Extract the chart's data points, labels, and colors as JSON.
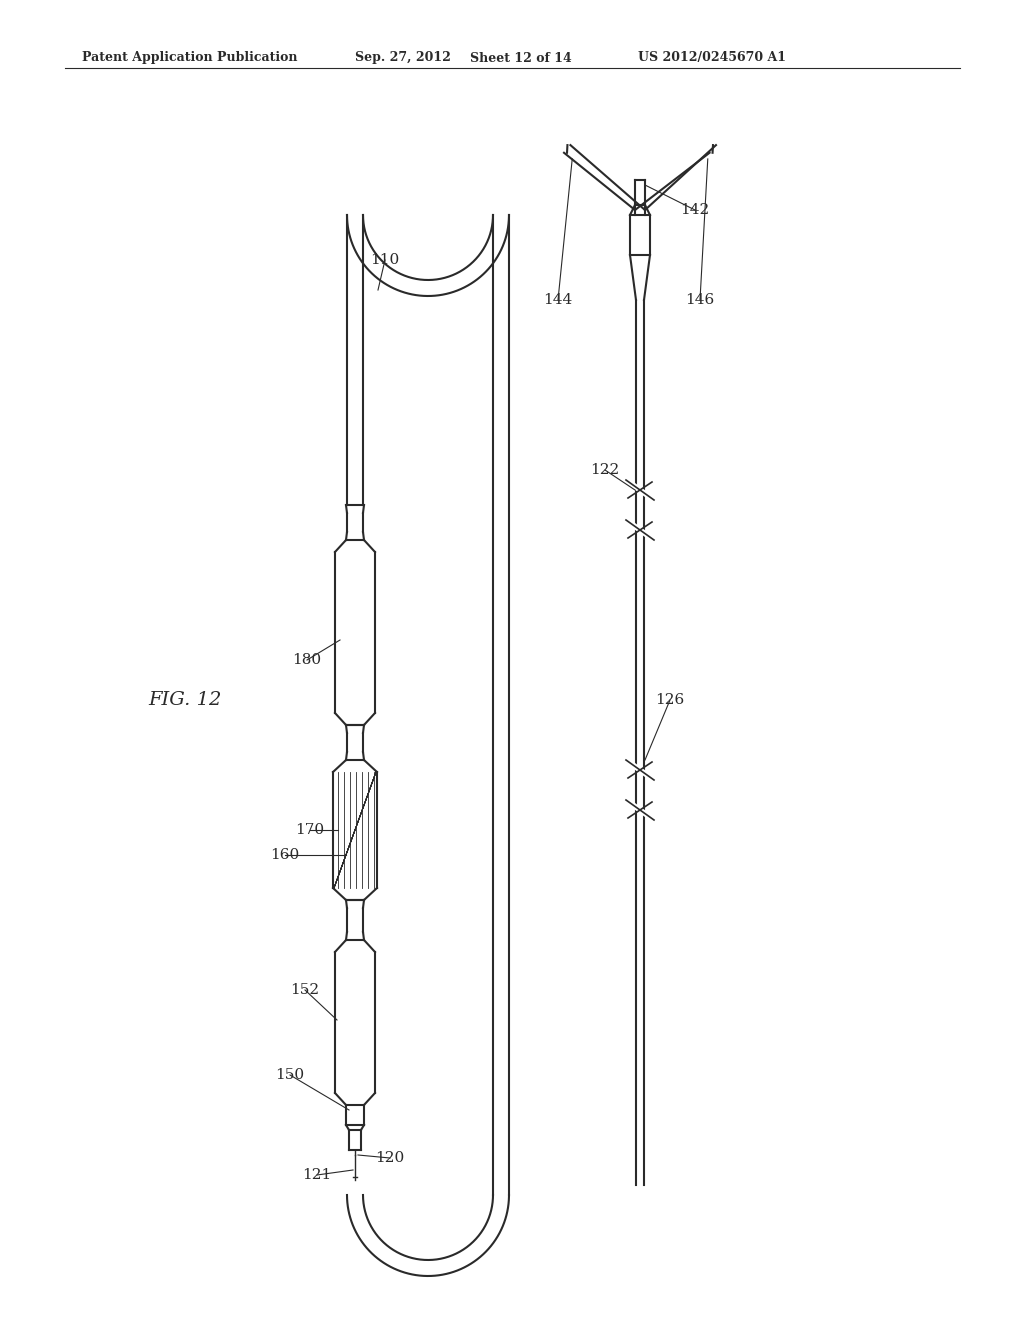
{
  "bg_color": "#ffffff",
  "line_color": "#2a2a2a",
  "header_text": "Patent Application Publication",
  "header_date": "Sep. 27, 2012",
  "header_sheet": "Sheet 12 of 14",
  "header_patent": "US 2012/0245670 A1"
}
